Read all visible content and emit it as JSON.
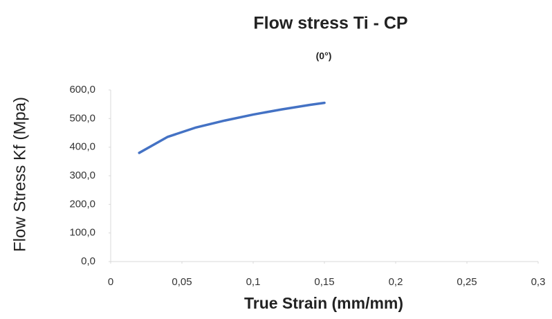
{
  "chart_data": {
    "type": "line",
    "title": "Flow stress Ti - CP",
    "subtitle": "(0°)",
    "x_label": "True Strain (mm/mm)",
    "y_label": "Flow Stress Kf (Mpa)",
    "xlim": [
      0,
      0.3
    ],
    "xticks": [
      0,
      {
        "value": 0.05,
        "label": "0,05"
      },
      {
        "value": 0.1,
        "label": "0,1"
      },
      {
        "value": 0.15,
        "label": "0,15"
      },
      {
        "value": 0.2,
        "label": "0,2"
      },
      {
        "value": 0.25,
        "label": "0,25"
      },
      {
        "value": 0.3,
        "label": "0,3"
      }
    ],
    "ylim": [
      0,
      600
    ],
    "yticks": [
      {
        "value": 0,
        "label": "0,0"
      },
      {
        "value": 100,
        "label": "100,0"
      },
      {
        "value": 200,
        "label": "200,0"
      },
      {
        "value": 300,
        "label": "300,0"
      },
      {
        "value": 400,
        "label": "400,0"
      },
      {
        "value": 500,
        "label": "500,0"
      },
      {
        "value": 600,
        "label": "600,0"
      }
    ],
    "grid": false,
    "x": [
      0.02,
      0.04,
      0.06,
      0.08,
      0.1,
      0.12,
      0.14,
      0.15
    ],
    "series": [
      {
        "name": "Flow stress",
        "color": "#4472c4",
        "values": [
          380,
          436,
          469,
          493,
          514,
          532,
          548,
          555
        ]
      }
    ]
  }
}
